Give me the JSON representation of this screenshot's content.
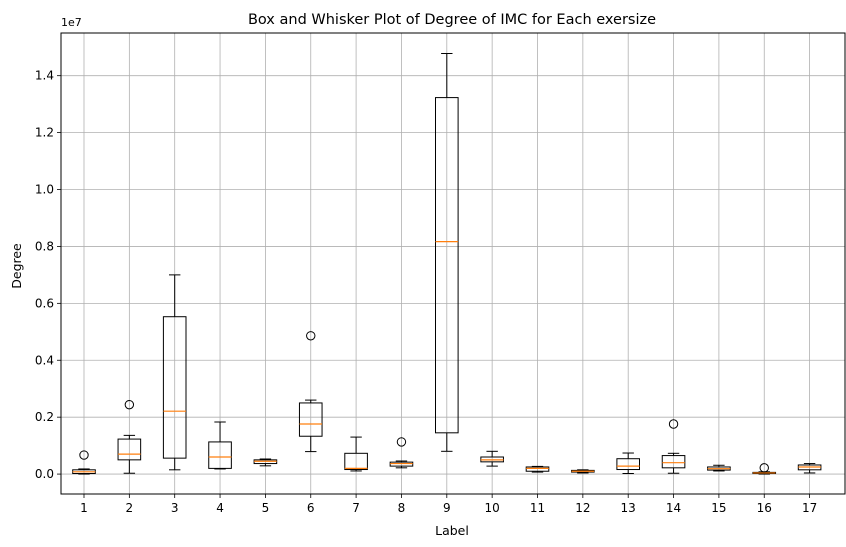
{
  "chart_data": {
    "type": "box",
    "title": "Box and Whisker Plot of Degree of IMC for Each exersize",
    "xlabel": "Label",
    "ylabel": "Degree",
    "y_multiplier": "1e7",
    "ylim": [
      -0.07,
      1.55
    ],
    "y_ticks": [
      0.0,
      0.2,
      0.4,
      0.6,
      0.8,
      1.0,
      1.2,
      1.4
    ],
    "y_tick_labels": [
      "0.0",
      "0.2",
      "0.4",
      "0.6",
      "0.8",
      "1.0",
      "1.2",
      "1.4"
    ],
    "grid": true,
    "median_color": "#ff7f0e",
    "box_color": "#000000",
    "categories": [
      "1",
      "2",
      "3",
      "4",
      "5",
      "6",
      "7",
      "8",
      "9",
      "10",
      "11",
      "12",
      "13",
      "14",
      "15",
      "16",
      "17"
    ],
    "boxes": [
      {
        "label": "1",
        "whislo": 0.0,
        "q1": 0.002,
        "med": 0.008,
        "q3": 0.015,
        "whishi": 0.018,
        "fliers": [
          0.067
        ]
      },
      {
        "label": "2",
        "whislo": 0.003,
        "q1": 0.05,
        "med": 0.07,
        "q3": 0.123,
        "whishi": 0.136,
        "fliers": [
          0.244
        ]
      },
      {
        "label": "3",
        "whislo": 0.015,
        "q1": 0.056,
        "med": 0.221,
        "q3": 0.553,
        "whishi": 0.7,
        "fliers": []
      },
      {
        "label": "4",
        "whislo": 0.018,
        "q1": 0.02,
        "med": 0.06,
        "q3": 0.113,
        "whishi": 0.183,
        "fliers": []
      },
      {
        "label": "5",
        "whislo": 0.029,
        "q1": 0.037,
        "med": 0.045,
        "q3": 0.05,
        "whishi": 0.053,
        "fliers": []
      },
      {
        "label": "6",
        "whislo": 0.079,
        "q1": 0.133,
        "med": 0.176,
        "q3": 0.25,
        "whishi": 0.26,
        "fliers": [
          0.486
        ]
      },
      {
        "label": "7",
        "whislo": 0.011,
        "q1": 0.016,
        "med": 0.02,
        "q3": 0.073,
        "whishi": 0.13,
        "fliers": []
      },
      {
        "label": "8",
        "whislo": 0.022,
        "q1": 0.028,
        "med": 0.037,
        "q3": 0.042,
        "whishi": 0.046,
        "fliers": [
          0.113
        ]
      },
      {
        "label": "9",
        "whislo": 0.08,
        "q1": 0.145,
        "med": 0.817,
        "q3": 1.323,
        "whishi": 1.478,
        "fliers": []
      },
      {
        "label": "10",
        "whislo": 0.028,
        "q1": 0.043,
        "med": 0.05,
        "q3": 0.06,
        "whishi": 0.08,
        "fliers": []
      },
      {
        "label": "11",
        "whislo": 0.007,
        "q1": 0.01,
        "med": 0.02,
        "q3": 0.025,
        "whishi": 0.027,
        "fliers": []
      },
      {
        "label": "12",
        "whislo": 0.004,
        "q1": 0.007,
        "med": 0.01,
        "q3": 0.013,
        "whishi": 0.015,
        "fliers": []
      },
      {
        "label": "13",
        "whislo": 0.002,
        "q1": 0.016,
        "med": 0.028,
        "q3": 0.054,
        "whishi": 0.074,
        "fliers": []
      },
      {
        "label": "14",
        "whislo": 0.003,
        "q1": 0.022,
        "med": 0.04,
        "q3": 0.065,
        "whishi": 0.073,
        "fliers": [
          0.176
        ]
      },
      {
        "label": "15",
        "whislo": 0.011,
        "q1": 0.014,
        "med": 0.019,
        "q3": 0.025,
        "whishi": 0.031,
        "fliers": []
      },
      {
        "label": "16",
        "whislo": 0.0,
        "q1": 0.002,
        "med": 0.004,
        "q3": 0.006,
        "whishi": 0.008,
        "fliers": [
          0.022
        ]
      },
      {
        "label": "17",
        "whislo": 0.004,
        "q1": 0.015,
        "med": 0.025,
        "q3": 0.032,
        "whishi": 0.037,
        "fliers": []
      }
    ]
  }
}
